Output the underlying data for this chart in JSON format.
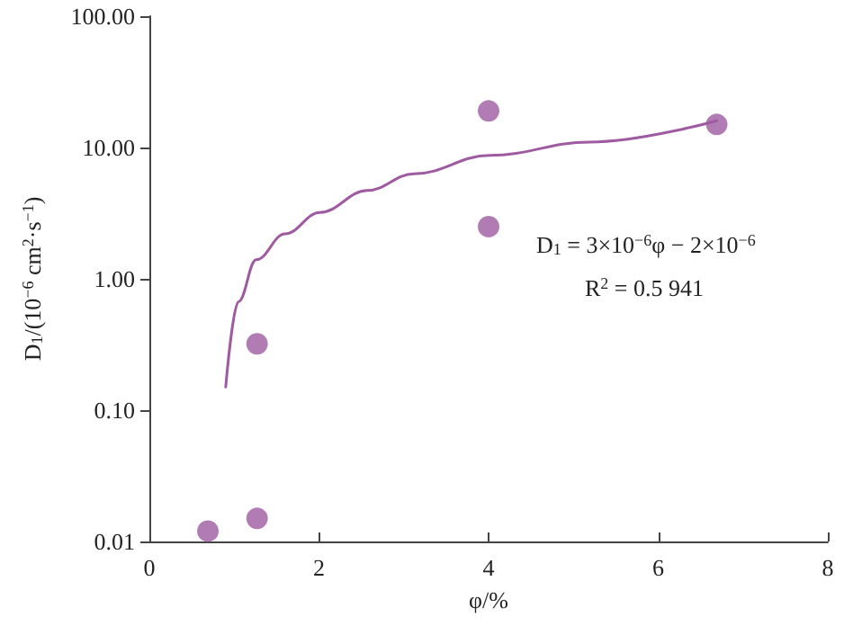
{
  "chart_data": {
    "type": "scatter",
    "xlabel": "φ/%",
    "ylabel": "D$_{1}$/(10$^{−6}$ cm$^{2}$·s$^{−1}$)",
    "series": [
      {
        "color": "#9e5ba1",
        "marker": "circle",
        "x": [
          0.69,
          1.27,
          1.27,
          4,
          4,
          6.69
        ],
        "values": [
          0.012,
          0.015,
          0.32,
          19,
          2.5,
          15
        ]
      },
      {
        "type": "line",
        "color": "#9e5ba1",
        "marker": "none",
        "line_style": "solid",
        "x": [
          0.9,
          1.05,
          1.26,
          1.6,
          2.01,
          2.57,
          3.12,
          4.01,
          5.19,
          6.69
        ],
        "values": [
          0.15,
          0.67,
          1.4,
          2.2,
          3.2,
          4.7,
          6.3,
          8.7,
          11,
          16
        ]
      }
    ],
    "log": "y",
    "xlim": [
      0,
      8
    ],
    "xticks": [
      0,
      2,
      4,
      6,
      8
    ],
    "ylim": [
      0.01,
      100
    ],
    "yticks": [
      {
        "value": 0.01,
        "label": "0.01"
      },
      {
        "value": 0.1,
        "label": "0.10"
      },
      {
        "value": 1,
        "label": "1.00"
      },
      {
        "value": 10,
        "label": "10.00"
      },
      {
        "value": 100,
        "label": "100.00"
      }
    ],
    "grid": false,
    "annotations": [
      "D$_{1}$ = 3×10$^{−6}$φ − 2×10$^{−6}$",
      "R$^{2}$ = 0.5 941"
    ]
  }
}
